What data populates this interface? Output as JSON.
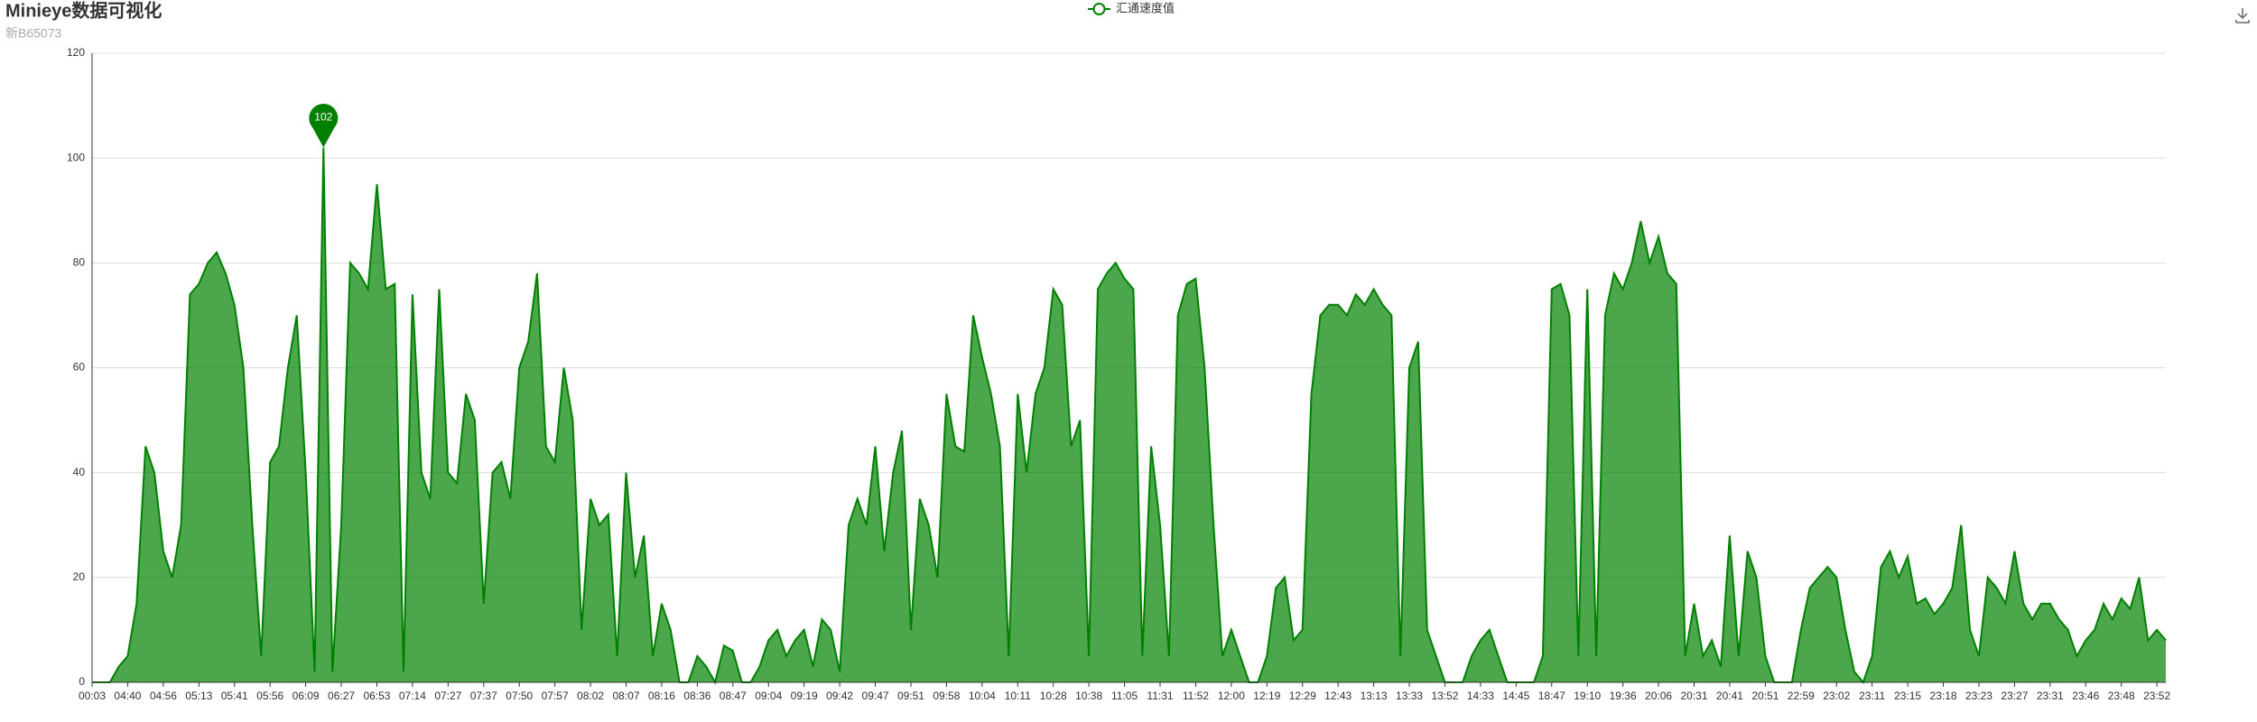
{
  "chart_data": {
    "type": "line",
    "title": "Minieye数据可视化",
    "subtitle": "新B65073",
    "categories": [
      "00:03",
      null,
      null,
      null,
      "04:40",
      null,
      null,
      null,
      "04:56",
      null,
      null,
      null,
      "05:13",
      null,
      null,
      null,
      "05:41",
      null,
      null,
      null,
      "05:56",
      null,
      null,
      null,
      "06:09",
      null,
      null,
      null,
      "06:27",
      null,
      null,
      null,
      "06:53",
      null,
      null,
      null,
      "07:14",
      null,
      null,
      null,
      "07:27",
      null,
      null,
      null,
      "07:37",
      null,
      null,
      null,
      "07:50",
      null,
      null,
      null,
      "07:57",
      null,
      null,
      null,
      "08:02",
      null,
      null,
      null,
      "08:07",
      null,
      null,
      null,
      "08:16",
      null,
      null,
      null,
      "08:36",
      null,
      null,
      null,
      "08:47",
      null,
      null,
      null,
      "09:04",
      null,
      null,
      null,
      "09:19",
      null,
      null,
      null,
      "09:42",
      null,
      null,
      null,
      "09:47",
      null,
      null,
      null,
      "09:51",
      null,
      null,
      null,
      "09:58",
      null,
      null,
      null,
      "10:04",
      null,
      null,
      null,
      "10:11",
      null,
      null,
      null,
      "10:28",
      null,
      null,
      null,
      "10:38",
      null,
      null,
      null,
      "11:05",
      null,
      null,
      null,
      "11:31",
      null,
      null,
      null,
      "11:52",
      null,
      null,
      null,
      "12:00",
      null,
      null,
      null,
      "12:19",
      null,
      null,
      null,
      "12:29",
      null,
      null,
      null,
      "12:43",
      null,
      null,
      null,
      "13:13",
      null,
      null,
      null,
      "13:33",
      null,
      null,
      null,
      "13:52",
      null,
      null,
      null,
      "14:33",
      null,
      null,
      null,
      "14:45",
      null,
      null,
      null,
      "18:47",
      null,
      null,
      null,
      "19:10",
      null,
      null,
      null,
      "19:36",
      null,
      null,
      null,
      "20:06",
      null,
      null,
      null,
      "20:31",
      null,
      null,
      null,
      "20:41",
      null,
      null,
      null,
      "20:51",
      null,
      null,
      null,
      "22:59",
      null,
      null,
      null,
      "23:02",
      null,
      null,
      null,
      "23:11",
      null,
      null,
      null,
      "23:15",
      null,
      null,
      null,
      "23:18",
      null,
      null,
      null,
      "23:23",
      null,
      null,
      null,
      "23:27",
      null,
      null,
      null,
      "23:31",
      null,
      null,
      null,
      "23:46",
      null,
      null,
      null,
      "23:48",
      null,
      null,
      null,
      "23:52",
      null
    ],
    "series": [
      {
        "name": "汇通速度值",
        "color": "#008000",
        "values": [
          0,
          0,
          0,
          3,
          5,
          15,
          45,
          40,
          25,
          20,
          30,
          74,
          76,
          80,
          82,
          78,
          72,
          60,
          30,
          5,
          42,
          45,
          60,
          70,
          40,
          2,
          102,
          2,
          30,
          80,
          78,
          75,
          95,
          75,
          76,
          2,
          74,
          40,
          35,
          75,
          40,
          38,
          55,
          50,
          15,
          40,
          42,
          35,
          60,
          65,
          78,
          45,
          42,
          60,
          50,
          10,
          35,
          30,
          32,
          5,
          40,
          20,
          28,
          5,
          15,
          10,
          0,
          0,
          5,
          3,
          0,
          7,
          6,
          0,
          0,
          3,
          8,
          10,
          5,
          8,
          10,
          3,
          12,
          10,
          2,
          30,
          35,
          30,
          45,
          25,
          40,
          48,
          10,
          35,
          30,
          20,
          55,
          45,
          44,
          70,
          62,
          55,
          45,
          5,
          55,
          40,
          55,
          60,
          75,
          72,
          45,
          50,
          5,
          75,
          78,
          80,
          77,
          75,
          5,
          45,
          30,
          5,
          70,
          76,
          77,
          60,
          30,
          5,
          10,
          5,
          0,
          0,
          5,
          18,
          20,
          8,
          10,
          55,
          70,
          72,
          72,
          70,
          74,
          72,
          75,
          72,
          70,
          5,
          60,
          65,
          10,
          5,
          0,
          0,
          0,
          5,
          8,
          10,
          5,
          0,
          0,
          0,
          0,
          5,
          75,
          76,
          70,
          5,
          75,
          5,
          70,
          78,
          75,
          80,
          88,
          80,
          85,
          78,
          76,
          5,
          15,
          5,
          8,
          3,
          28,
          5,
          25,
          20,
          5,
          0,
          0,
          0,
          10,
          18,
          20,
          22,
          20,
          10,
          2,
          0,
          5,
          22,
          25,
          20,
          24,
          15,
          16,
          13,
          15,
          18,
          30,
          10,
          5,
          20,
          18,
          15,
          25,
          15,
          12,
          15,
          15,
          12,
          10,
          5,
          8,
          10,
          15,
          12,
          16,
          14,
          20,
          8,
          10,
          8
        ]
      }
    ],
    "ylim": [
      0,
      120
    ],
    "yticks": [
      0,
      20,
      40,
      60,
      80,
      100,
      120
    ],
    "grid": true,
    "legend": "top"
  }
}
